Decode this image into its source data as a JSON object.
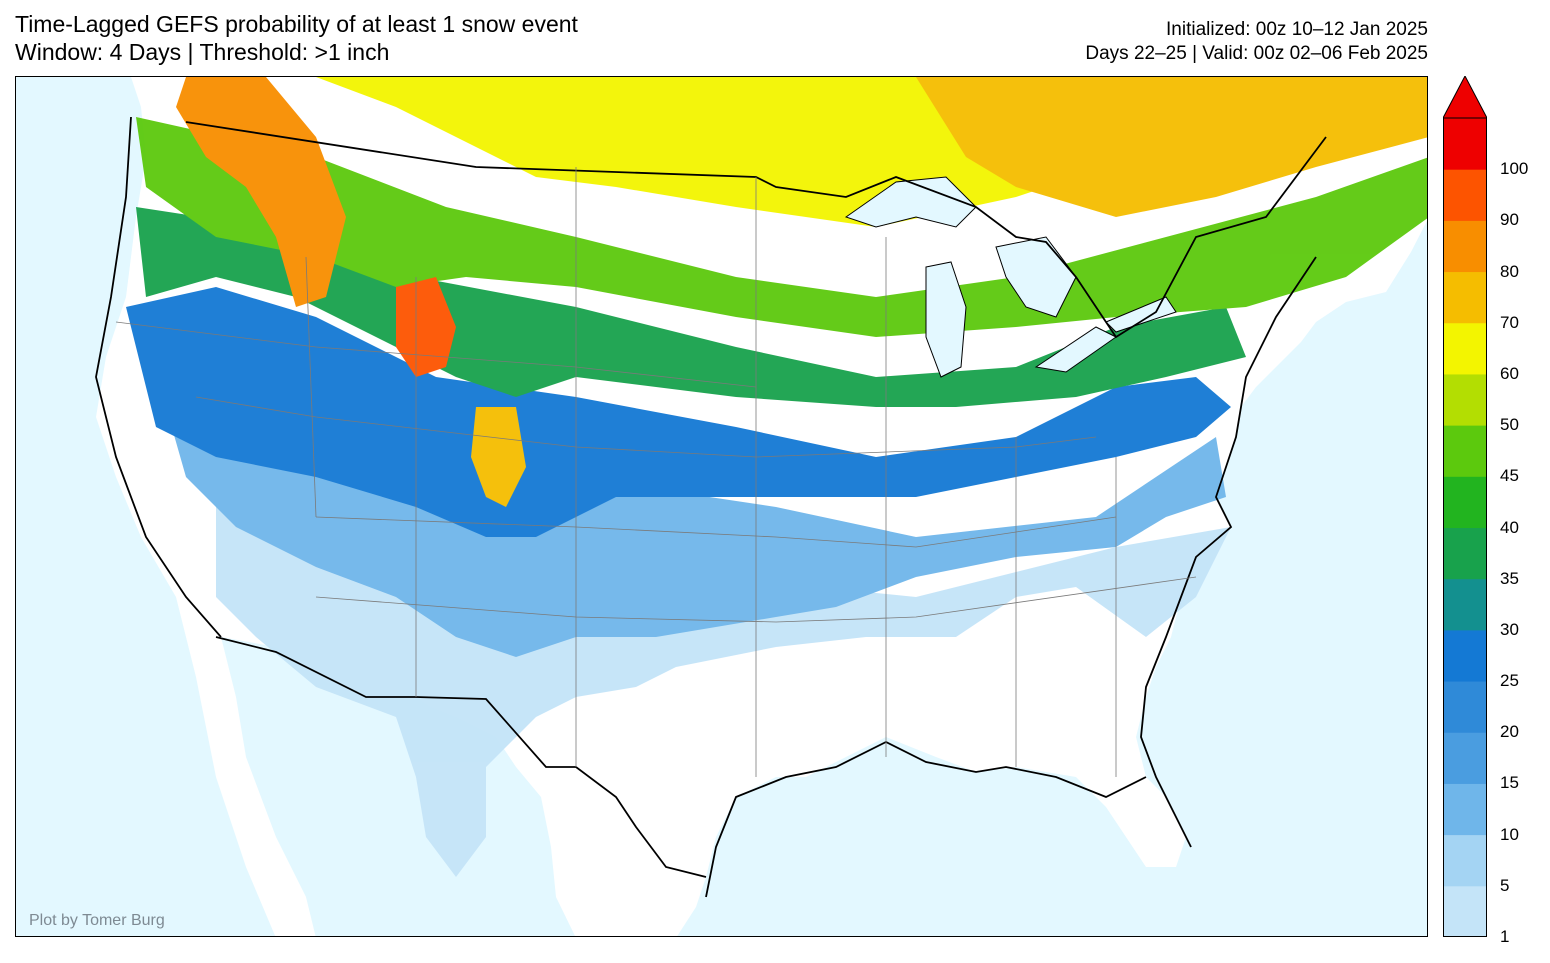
{
  "header": {
    "title_line1": "Time-Lagged GEFS probability of at least 1 snow event",
    "title_line2": "Window: 4 Days | Threshold: >1 inch",
    "meta_line1": "Initialized: 00z 10–12 Jan 2025",
    "meta_line2": "Days 22–25 | Valid: 00z 02–06 Feb 2025"
  },
  "credit": "Plot by Tomer Burg",
  "colors": {
    "ocean": "#e3f8ff",
    "land": "#ffffff",
    "border": "#000000",
    "state_lines": "#7a7a7a"
  },
  "colorbar": {
    "ticks": [
      "1",
      "5",
      "10",
      "15",
      "20",
      "25",
      "30",
      "35",
      "40",
      "45",
      "50",
      "60",
      "70",
      "80",
      "90",
      "100"
    ],
    "colors": [
      "#c4e4f8",
      "#a4d4f3",
      "#6fb6ea",
      "#4a9de0",
      "#2f8ad8",
      "#1479d4",
      "#13908f",
      "#18a24c",
      "#22b41f",
      "#5cc90d",
      "#b3de02",
      "#f3f500",
      "#f5bd00",
      "#f88e00",
      "#fd5400",
      "#ee0000"
    ],
    "extend_max": true
  }
}
